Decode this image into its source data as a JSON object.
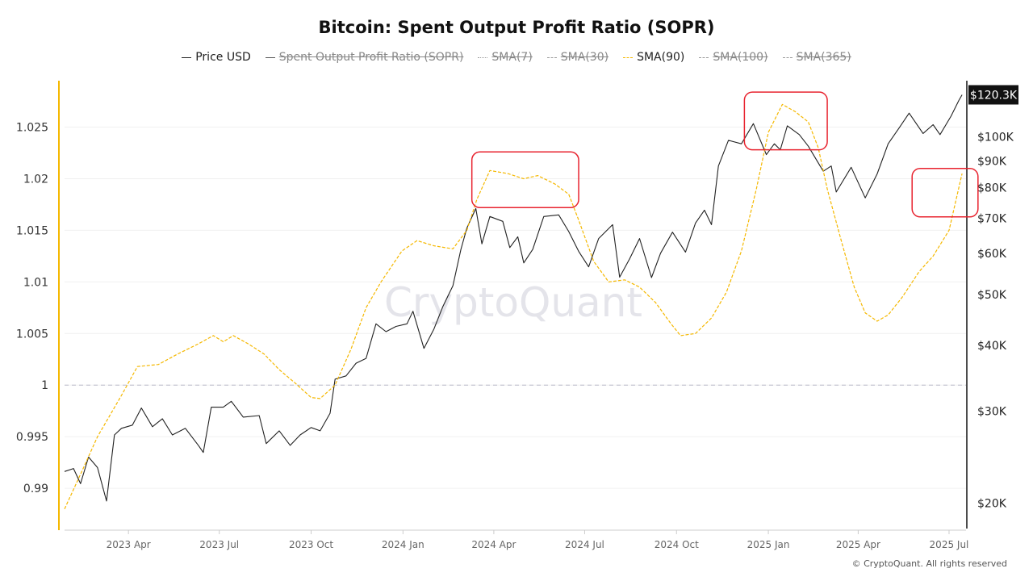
{
  "chart_data": {
    "type": "line",
    "title": "Bitcoin: Spent Output Profit Ratio (SOPR)",
    "legend": [
      {
        "name": "Price USD",
        "style": "solid",
        "color": "#222222",
        "hidden": false
      },
      {
        "name": "Spent Output Profit Ratio (SOPR)",
        "style": "solid",
        "color": "#555555",
        "hidden": true
      },
      {
        "name": "SMA(7)",
        "style": "dotted",
        "color": "#999999",
        "hidden": true
      },
      {
        "name": "SMA(30)",
        "style": "dashed",
        "color": "#999999",
        "hidden": true
      },
      {
        "name": "SMA(90)",
        "style": "dashed",
        "color": "#f5b800",
        "hidden": false
      },
      {
        "name": "SMA(100)",
        "style": "dashed",
        "color": "#999999",
        "hidden": true
      },
      {
        "name": "SMA(365)",
        "style": "dashed",
        "color": "#999999",
        "hidden": true
      }
    ],
    "legend_placement": "top-center",
    "x_ticks": [
      "2023 Apr",
      "2023 Jul",
      "2023 Oct",
      "2024 Jan",
      "2024 Apr",
      "2024 Jul",
      "2024 Oct",
      "2025 Jan",
      "2025 Apr",
      "2025 Jul"
    ],
    "x_tick_dates": [
      "2023-04-01",
      "2023-07-01",
      "2023-10-01",
      "2024-01-01",
      "2024-04-01",
      "2024-07-01",
      "2024-10-01",
      "2025-01-01",
      "2025-04-01",
      "2025-07-01"
    ],
    "xlim": [
      "2023-01-27",
      "2025-07-18"
    ],
    "y_left": {
      "ticks": [
        "0.99",
        "0.995",
        "1",
        "1.005",
        "1.01",
        "1.015",
        "1.02",
        "1.025"
      ],
      "tick_values": [
        0.99,
        0.995,
        1,
        1.005,
        1.01,
        1.015,
        1.02,
        1.025
      ],
      "ylim": [
        0.9861,
        1.0295
      ],
      "reference_line": 1,
      "axis_color": "#f5b800"
    },
    "y_right": {
      "scale": "log",
      "ticks": [
        "$20K",
        "$30K",
        "$40K",
        "$50K",
        "$60K",
        "$70K",
        "$80K",
        "$90K",
        "$100K"
      ],
      "tick_values": [
        20,
        30,
        40,
        50,
        60,
        70,
        80,
        90,
        100
      ],
      "unit": "K USD",
      "ylim": [
        17.9,
        128
      ],
      "last_value_label": "$120.3K"
    },
    "grid": true,
    "series": [
      {
        "name": "Price USD",
        "axis": "right",
        "color": "#222222",
        "points": [
          [
            "2023-01-27",
            23.0
          ],
          [
            "2023-02-05",
            23.3
          ],
          [
            "2023-02-12",
            21.8
          ],
          [
            "2023-02-20",
            24.5
          ],
          [
            "2023-03-01",
            23.4
          ],
          [
            "2023-03-10",
            20.2
          ],
          [
            "2023-03-18",
            27.0
          ],
          [
            "2023-03-25",
            27.8
          ],
          [
            "2023-04-05",
            28.2
          ],
          [
            "2023-04-14",
            30.4
          ],
          [
            "2023-04-25",
            28.0
          ],
          [
            "2023-05-05",
            29.0
          ],
          [
            "2023-05-15",
            27.0
          ],
          [
            "2023-05-28",
            27.8
          ],
          [
            "2023-06-10",
            25.8
          ],
          [
            "2023-06-15",
            25.0
          ],
          [
            "2023-06-23",
            30.5
          ],
          [
            "2023-07-05",
            30.5
          ],
          [
            "2023-07-13",
            31.3
          ],
          [
            "2023-07-25",
            29.2
          ],
          [
            "2023-08-10",
            29.4
          ],
          [
            "2023-08-17",
            26.0
          ],
          [
            "2023-08-30",
            27.5
          ],
          [
            "2023-09-10",
            25.8
          ],
          [
            "2023-09-20",
            27.0
          ],
          [
            "2023-10-01",
            27.9
          ],
          [
            "2023-10-10",
            27.5
          ],
          [
            "2023-10-20",
            29.7
          ],
          [
            "2023-10-25",
            34.5
          ],
          [
            "2023-11-05",
            35.0
          ],
          [
            "2023-11-15",
            37.0
          ],
          [
            "2023-11-25",
            37.8
          ],
          [
            "2023-12-05",
            44.0
          ],
          [
            "2023-12-15",
            42.5
          ],
          [
            "2023-12-25",
            43.5
          ],
          [
            "2024-01-05",
            44.0
          ],
          [
            "2024-01-11",
            46.5
          ],
          [
            "2024-01-22",
            39.5
          ],
          [
            "2024-02-01",
            43.0
          ],
          [
            "2024-02-10",
            47.5
          ],
          [
            "2024-02-20",
            52.0
          ],
          [
            "2024-02-28",
            61.0
          ],
          [
            "2024-03-05",
            67.0
          ],
          [
            "2024-03-14",
            73.0
          ],
          [
            "2024-03-20",
            62.5
          ],
          [
            "2024-03-28",
            70.5
          ],
          [
            "2024-04-10",
            69.0
          ],
          [
            "2024-04-17",
            61.5
          ],
          [
            "2024-04-25",
            64.5
          ],
          [
            "2024-05-01",
            57.5
          ],
          [
            "2024-05-10",
            61.0
          ],
          [
            "2024-05-21",
            70.5
          ],
          [
            "2024-06-05",
            71.0
          ],
          [
            "2024-06-15",
            66.0
          ],
          [
            "2024-06-25",
            60.5
          ],
          [
            "2024-07-05",
            56.5
          ],
          [
            "2024-07-15",
            64.0
          ],
          [
            "2024-07-29",
            68.0
          ],
          [
            "2024-08-05",
            54.0
          ],
          [
            "2024-08-15",
            58.5
          ],
          [
            "2024-08-25",
            64.0
          ],
          [
            "2024-09-06",
            53.9
          ],
          [
            "2024-09-15",
            60.0
          ],
          [
            "2024-09-27",
            65.8
          ],
          [
            "2024-10-10",
            60.3
          ],
          [
            "2024-10-20",
            68.5
          ],
          [
            "2024-10-29",
            72.5
          ],
          [
            "2024-11-05",
            68.0
          ],
          [
            "2024-11-12",
            88.0
          ],
          [
            "2024-11-22",
            98.5
          ],
          [
            "2024-12-05",
            97.0
          ],
          [
            "2024-12-17",
            106.0
          ],
          [
            "2024-12-30",
            92.5
          ],
          [
            "2025-01-07",
            97.0
          ],
          [
            "2025-01-13",
            94.5
          ],
          [
            "2025-01-20",
            105.0
          ],
          [
            "2025-02-01",
            101.0
          ],
          [
            "2025-02-10",
            96.0
          ],
          [
            "2025-02-25",
            86.0
          ],
          [
            "2025-03-05",
            88.0
          ],
          [
            "2025-03-10",
            78.5
          ],
          [
            "2025-03-25",
            87.5
          ],
          [
            "2025-04-08",
            76.5
          ],
          [
            "2025-04-20",
            85.0
          ],
          [
            "2025-05-01",
            97.0
          ],
          [
            "2025-05-12",
            104.0
          ],
          [
            "2025-05-22",
            111.0
          ],
          [
            "2025-06-05",
            101.5
          ],
          [
            "2025-06-15",
            105.5
          ],
          [
            "2025-06-22",
            101.0
          ],
          [
            "2025-07-03",
            109.5
          ],
          [
            "2025-07-11",
            117.5
          ],
          [
            "2025-07-14",
            120.3
          ]
        ]
      },
      {
        "name": "SMA(90)",
        "axis": "left",
        "color": "#f5b800",
        "points": [
          [
            "2023-01-27",
            0.988
          ],
          [
            "2023-02-15",
            0.992
          ],
          [
            "2023-03-01",
            0.995
          ],
          [
            "2023-03-25",
            0.999
          ],
          [
            "2023-04-10",
            1.0018
          ],
          [
            "2023-05-01",
            1.002
          ],
          [
            "2023-05-20",
            1.003
          ],
          [
            "2023-06-10",
            1.004
          ],
          [
            "2023-06-25",
            1.0048
          ],
          [
            "2023-07-05",
            1.0042
          ],
          [
            "2023-07-15",
            1.0048
          ],
          [
            "2023-07-30",
            1.004
          ],
          [
            "2023-08-15",
            1.003
          ],
          [
            "2023-08-30",
            1.0015
          ],
          [
            "2023-09-15",
            1.0002
          ],
          [
            "2023-10-01",
            0.9988
          ],
          [
            "2023-10-10",
            0.9987
          ],
          [
            "2023-10-25",
            1.0
          ],
          [
            "2023-11-10",
            1.0035
          ],
          [
            "2023-11-25",
            1.0075
          ],
          [
            "2023-12-10",
            1.01
          ],
          [
            "2023-12-31",
            1.013
          ],
          [
            "2024-01-15",
            1.014
          ],
          [
            "2024-02-01",
            1.0135
          ],
          [
            "2024-02-20",
            1.0132
          ],
          [
            "2024-03-05",
            1.015
          ],
          [
            "2024-03-15",
            1.018
          ],
          [
            "2024-03-28",
            1.0208
          ],
          [
            "2024-04-15",
            1.0205
          ],
          [
            "2024-05-01",
            1.02
          ],
          [
            "2024-05-15",
            1.0203
          ],
          [
            "2024-06-01",
            1.0195
          ],
          [
            "2024-06-15",
            1.0185
          ],
          [
            "2024-06-25",
            1.016
          ],
          [
            "2024-07-10",
            1.012
          ],
          [
            "2024-07-25",
            1.01
          ],
          [
            "2024-08-10",
            1.0102
          ],
          [
            "2024-08-25",
            1.0095
          ],
          [
            "2024-09-10",
            1.008
          ],
          [
            "2024-09-25",
            1.006
          ],
          [
            "2024-10-05",
            1.0048
          ],
          [
            "2024-10-20",
            1.005
          ],
          [
            "2024-11-05",
            1.0065
          ],
          [
            "2024-11-20",
            1.009
          ],
          [
            "2024-12-05",
            1.013
          ],
          [
            "2024-12-20",
            1.019
          ],
          [
            "2025-01-01",
            1.0245
          ],
          [
            "2025-01-15",
            1.0272
          ],
          [
            "2025-01-28",
            1.0265
          ],
          [
            "2025-02-10",
            1.0255
          ],
          [
            "2025-02-20",
            1.023
          ],
          [
            "2025-03-01",
            1.019
          ],
          [
            "2025-03-15",
            1.014
          ],
          [
            "2025-03-28",
            1.0095
          ],
          [
            "2025-04-08",
            1.007
          ],
          [
            "2025-04-20",
            1.0062
          ],
          [
            "2025-05-01",
            1.0068
          ],
          [
            "2025-05-15",
            1.0085
          ],
          [
            "2025-06-01",
            1.011
          ],
          [
            "2025-06-15",
            1.0125
          ],
          [
            "2025-07-01",
            1.015
          ],
          [
            "2025-07-14",
            1.0205
          ]
        ]
      }
    ],
    "annotations": [
      {
        "type": "highlight-box",
        "color": "#e8232f",
        "x": [
          "2024-03-10",
          "2024-06-25"
        ],
        "y_left": [
          1.0172,
          1.0226
        ]
      },
      {
        "type": "highlight-box",
        "color": "#e8232f",
        "x": [
          "2024-12-08",
          "2025-03-01"
        ],
        "y_left": [
          1.0228,
          1.0284
        ]
      },
      {
        "type": "highlight-box",
        "color": "#e8232f",
        "x": [
          "2025-05-25",
          "2025-07-30"
        ],
        "y_left": [
          1.0163,
          1.021
        ]
      }
    ],
    "watermark": "CryptoQuant"
  },
  "footer": {
    "copyright": "© CryptoQuant. All rights reserved"
  }
}
